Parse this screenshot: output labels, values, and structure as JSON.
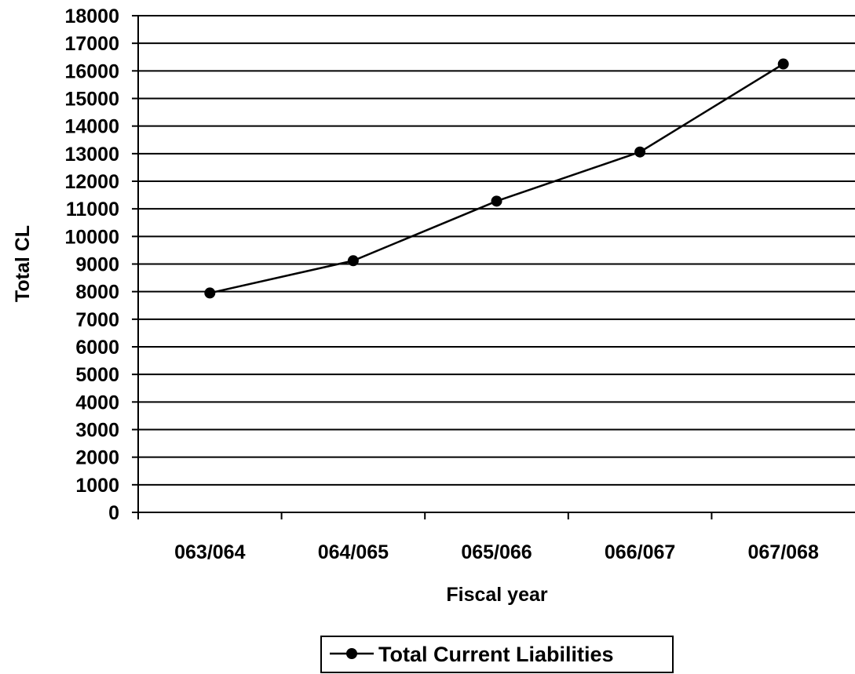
{
  "chart_data": {
    "type": "line",
    "title": "",
    "xlabel": "Fiscal year",
    "ylabel": "Total CL",
    "categories": [
      "063/064",
      "064/065",
      "065/066",
      "066/067",
      "067/068"
    ],
    "series": [
      {
        "name": "Total Current Liabilities",
        "values": [
          7950,
          9120,
          11280,
          13060,
          16250
        ],
        "color": "#000000",
        "marker": "circle"
      }
    ],
    "ylim": [
      0,
      18000
    ],
    "yticks": [
      "0",
      "1000",
      "2000",
      "3000",
      "4000",
      "5000",
      "6000",
      "7000",
      "8000",
      "9000",
      "10000",
      "11000",
      "12000",
      "13000",
      "14000",
      "15000",
      "16000",
      "17000",
      "18000"
    ],
    "grid": true,
    "legend_position": "bottom-center"
  }
}
